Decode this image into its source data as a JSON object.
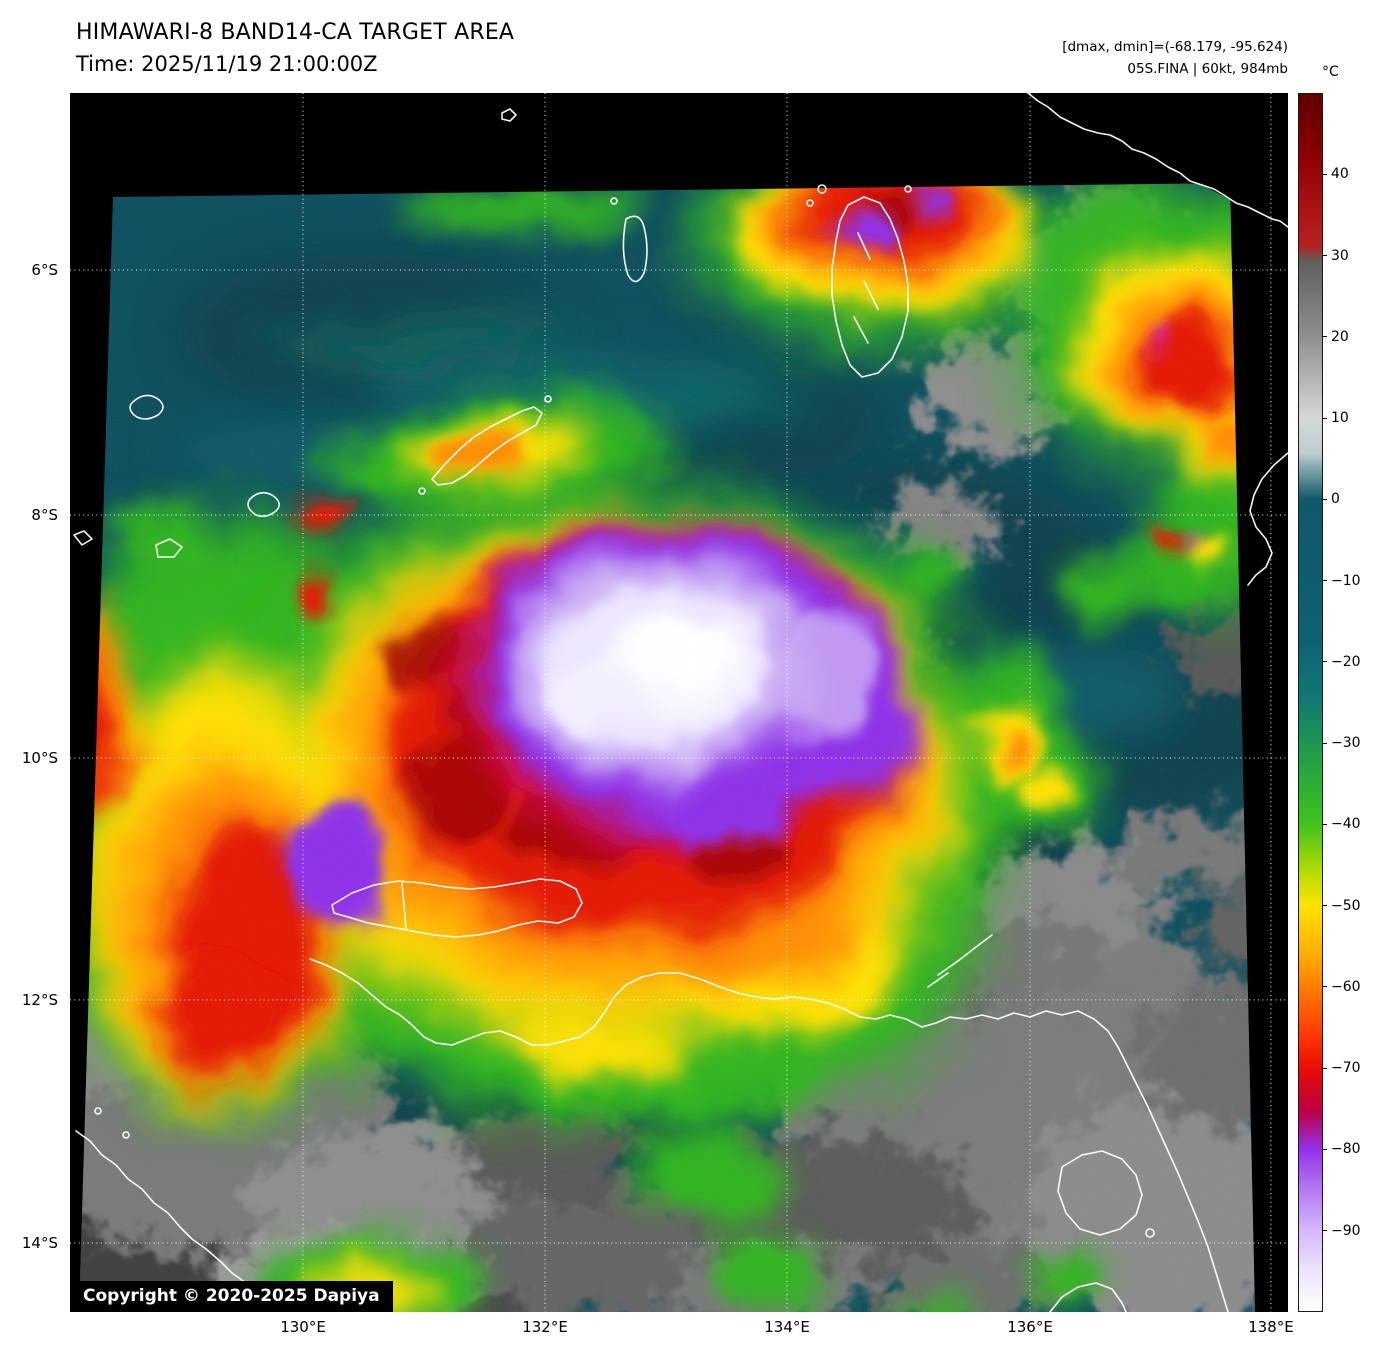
{
  "header": {
    "title": "HIMAWARI-8 BAND14-CA TARGET AREA",
    "time_line": "Time: 2025/11/19 21:00:00Z",
    "range_line": "[dmax, dmin]=(-68.179, -95.624)",
    "storm_line": "05S.FINA | 60kt, 984mb"
  },
  "colorbar": {
    "unit_label": "°C",
    "domain_top_c": 50,
    "domain_bottom_c": -100,
    "ticks": [
      {
        "label": "40",
        "pct": 6.667
      },
      {
        "label": "30",
        "pct": 13.333
      },
      {
        "label": "20",
        "pct": 20.0
      },
      {
        "label": "10",
        "pct": 26.667
      },
      {
        "label": "0",
        "pct": 33.333
      },
      {
        "label": "−10",
        "pct": 40.0
      },
      {
        "label": "−20",
        "pct": 46.667
      },
      {
        "label": "−30",
        "pct": 53.333
      },
      {
        "label": "−40",
        "pct": 60.0
      },
      {
        "label": "−50",
        "pct": 66.667
      },
      {
        "label": "−60",
        "pct": 73.333
      },
      {
        "label": "−70",
        "pct": 80.0
      },
      {
        "label": "−80",
        "pct": 86.667
      },
      {
        "label": "−90",
        "pct": 93.333
      }
    ],
    "gradient_stops": [
      {
        "color": "#600000",
        "pct": 0
      },
      {
        "color": "#8b0000",
        "pct": 5
      },
      {
        "color": "#b01515",
        "pct": 10
      },
      {
        "color": "#b22222",
        "pct": 12.5
      },
      {
        "color": "#606060",
        "pct": 13.8
      },
      {
        "color": "#8f8f8f",
        "pct": 20
      },
      {
        "color": "#d8d8d8",
        "pct": 26.7
      },
      {
        "color": "#bccdd0",
        "pct": 29.5
      },
      {
        "color": "#0f5868",
        "pct": 33.3
      },
      {
        "color": "#0e6174",
        "pct": 45
      },
      {
        "color": "#117a72",
        "pct": 50
      },
      {
        "color": "#1f9c4a",
        "pct": 54
      },
      {
        "color": "#3fc31c",
        "pct": 60
      },
      {
        "color": "#b8dc00",
        "pct": 64
      },
      {
        "color": "#ffe400",
        "pct": 66.7
      },
      {
        "color": "#ffb000",
        "pct": 70.5
      },
      {
        "color": "#ff7300",
        "pct": 74
      },
      {
        "color": "#ff3500",
        "pct": 77.5
      },
      {
        "color": "#ea0e00",
        "pct": 80
      },
      {
        "color": "#bd0040",
        "pct": 83.5
      },
      {
        "color": "#9430e8",
        "pct": 86.7
      },
      {
        "color": "#b478f2",
        "pct": 90
      },
      {
        "color": "#d4b6fb",
        "pct": 93.3
      },
      {
        "color": "#ece2ff",
        "pct": 96.5
      },
      {
        "color": "#ffffff",
        "pct": 100
      }
    ]
  },
  "axes": {
    "lat_ticks": [
      {
        "label": "6°S",
        "pct": 14.52
      },
      {
        "label": "8°S",
        "pct": 34.62
      },
      {
        "label": "10°S",
        "pct": 54.55
      },
      {
        "label": "12°S",
        "pct": 74.4
      },
      {
        "label": "14°S",
        "pct": 94.34
      }
    ],
    "lon_ticks": [
      {
        "label": "130°E",
        "pct": 19.13
      },
      {
        "label": "132°E",
        "pct": 39.0
      },
      {
        "label": "134°E",
        "pct": 58.87
      },
      {
        "label": "136°E",
        "pct": 78.82
      },
      {
        "label": "138°E",
        "pct": 98.6
      }
    ]
  },
  "footer": {
    "copyright": "Copyright © 2020-2025 Dapiya"
  },
  "palette": {
    "page_background": "#ffffff",
    "plot_background": "#000000",
    "sea_teal": "#0b4d5b",
    "cloud_gray": "#8a8a8a",
    "convection_green": "#2fb41e",
    "convection_yellow": "#ffe000",
    "convection_orange": "#ff8c00",
    "convection_red": "#e41400",
    "cold_purple": "#8c2fe8",
    "coldest_white": "#ffffff",
    "coastline": "#ffffff",
    "gridline": "#ffffff"
  }
}
